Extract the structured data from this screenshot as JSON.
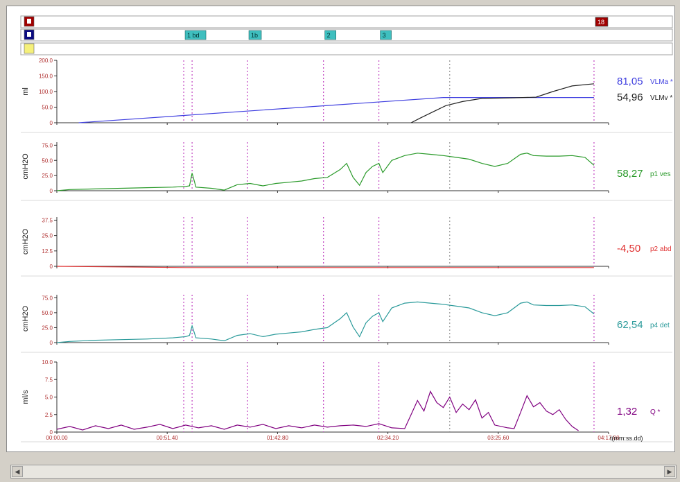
{
  "event_rows": [
    {
      "icon_color": "#a00000",
      "icon_label": "",
      "markers": [
        {
          "label": "18",
          "t": 4.17,
          "color": "#a00000",
          "text_color": "#ffffff"
        }
      ]
    },
    {
      "icon_color": "#0a0a80",
      "icon_label": "",
      "markers": [
        {
          "label": "1 bd",
          "t": 0.985,
          "color": "#3fbfbf",
          "text_color": "#003030"
        },
        {
          "label": "1b",
          "t": 1.48,
          "color": "#3fbfbf",
          "text_color": "#003030"
        },
        {
          "label": "2",
          "t": 2.07,
          "color": "#3fbfbf",
          "text_color": "#003030"
        },
        {
          "label": "3",
          "t": 2.5,
          "color": "#3fbfbf",
          "text_color": "#003030"
        }
      ]
    },
    {
      "icon_color": "#f5f07a",
      "icon_label": "",
      "markers": []
    }
  ],
  "vlines": {
    "magenta": [
      0.985,
      1.05,
      1.48,
      2.07,
      2.5,
      4.17
    ],
    "gray": [
      3.05
    ]
  },
  "chart_data": [
    {
      "type": "line",
      "ylabel": "ml",
      "ylim": [
        0,
        200
      ],
      "yticks": [
        "0",
        "50.0",
        "100.0",
        "150.0",
        "200.0"
      ],
      "ytick_values": [
        0,
        50,
        100,
        150,
        200
      ],
      "series": [
        {
          "name": "VLMa *",
          "color": "#4040e0",
          "readout": "81,05",
          "x": [
            0.17,
            3.0,
            4.17
          ],
          "y": [
            0,
            81,
            81
          ]
        },
        {
          "name": "VLMv *",
          "color": "#202020",
          "readout": "54,96",
          "x": [
            2.75,
            2.82,
            2.92,
            3.02,
            3.15,
            3.3,
            3.55,
            3.72,
            3.85,
            4.0,
            4.17
          ],
          "y": [
            0,
            15,
            35,
            55,
            68,
            78,
            80,
            82,
            100,
            118,
            125
          ]
        }
      ]
    },
    {
      "type": "line",
      "ylabel": "cmH2O",
      "ylim": [
        0,
        80
      ],
      "yticks": [
        "0",
        "25.0",
        "50.0",
        "75.0"
      ],
      "ytick_values": [
        0,
        25,
        50,
        75
      ],
      "series": [
        {
          "name": "p1 ves",
          "color": "#2a9a2a",
          "readout": "58,27",
          "x": [
            0.0,
            0.1,
            0.3,
            0.5,
            0.7,
            0.9,
            1.0,
            1.03,
            1.05,
            1.08,
            1.2,
            1.3,
            1.4,
            1.5,
            1.6,
            1.7,
            1.8,
            1.9,
            2.0,
            2.1,
            2.2,
            2.25,
            2.3,
            2.35,
            2.4,
            2.45,
            2.5,
            2.53,
            2.6,
            2.7,
            2.8,
            2.9,
            3.0,
            3.1,
            3.2,
            3.3,
            3.4,
            3.5,
            3.6,
            3.65,
            3.7,
            3.8,
            3.9,
            4.0,
            4.1,
            4.17
          ],
          "y": [
            0,
            2,
            3,
            4,
            5,
            6,
            7,
            8,
            29,
            6,
            4,
            1,
            10,
            12,
            8,
            12,
            14,
            16,
            20,
            22,
            35,
            45,
            22,
            9,
            30,
            40,
            45,
            30,
            50,
            58,
            62,
            60,
            58,
            55,
            52,
            45,
            40,
            45,
            60,
            62,
            58,
            57,
            57,
            58,
            55,
            42
          ]
        }
      ]
    },
    {
      "type": "line",
      "ylabel": "cmH2O",
      "ylim": [
        0,
        40
      ],
      "yticks": [
        "0",
        "12.5",
        "25.0",
        "37.5"
      ],
      "ytick_values": [
        0,
        12.5,
        25,
        37.5
      ],
      "series": [
        {
          "name": "p2 abd",
          "color": "#e03030",
          "readout": "-4,50",
          "x": [
            0.0,
            1.0,
            2.0,
            3.0,
            3.5,
            4.17
          ],
          "y": [
            0,
            -1,
            -2.2,
            -3.2,
            -4.0,
            -4.5
          ]
        }
      ]
    },
    {
      "type": "line",
      "ylabel": "cmH2O",
      "ylim": [
        0,
        80
      ],
      "yticks": [
        "0",
        "25.0",
        "50.0",
        "75.0"
      ],
      "ytick_values": [
        0,
        25,
        50,
        75
      ],
      "series": [
        {
          "name": "p4 det",
          "color": "#2a9a9a",
          "readout": "62,54",
          "x": [
            0.0,
            0.1,
            0.3,
            0.5,
            0.7,
            0.9,
            1.0,
            1.03,
            1.05,
            1.08,
            1.2,
            1.3,
            1.4,
            1.5,
            1.6,
            1.7,
            1.8,
            1.9,
            2.0,
            2.1,
            2.2,
            2.25,
            2.3,
            2.35,
            2.4,
            2.45,
            2.5,
            2.53,
            2.6,
            2.7,
            2.8,
            2.9,
            3.0,
            3.1,
            3.2,
            3.3,
            3.4,
            3.5,
            3.6,
            3.65,
            3.7,
            3.8,
            3.9,
            4.0,
            4.1,
            4.17
          ],
          "y": [
            0,
            2,
            4,
            5,
            6,
            8,
            10,
            12,
            28,
            8,
            6,
            3,
            12,
            15,
            10,
            14,
            16,
            18,
            22,
            25,
            40,
            50,
            26,
            10,
            33,
            44,
            50,
            35,
            58,
            66,
            68,
            66,
            64,
            61,
            58,
            50,
            45,
            50,
            66,
            68,
            63,
            62,
            62,
            63,
            60,
            48
          ]
        }
      ]
    },
    {
      "type": "line",
      "ylabel": "ml/s",
      "ylim": [
        0,
        10
      ],
      "yticks": [
        "0",
        "2.5",
        "5.0",
        "7.5",
        "10.0"
      ],
      "ytick_values": [
        0,
        2.5,
        5,
        7.5,
        10
      ],
      "xticks": [
        "00:00.00",
        "00:51.40",
        "01:42.80",
        "02:34.20",
        "03:25.60",
        "04:17.00"
      ],
      "xtick_values": [
        0,
        0.8567,
        1.7133,
        2.57,
        3.4267,
        4.2833
      ],
      "xlabel": "t(mm:ss.dd)",
      "series": [
        {
          "name": "Q *",
          "color": "#800080",
          "readout": "1,32",
          "x": [
            0.0,
            0.1,
            0.2,
            0.3,
            0.4,
            0.5,
            0.6,
            0.7,
            0.8,
            0.9,
            1.0,
            1.1,
            1.2,
            1.3,
            1.4,
            1.5,
            1.6,
            1.7,
            1.8,
            1.9,
            2.0,
            2.1,
            2.2,
            2.3,
            2.4,
            2.5,
            2.6,
            2.7,
            2.75,
            2.8,
            2.85,
            2.9,
            2.95,
            3.0,
            3.05,
            3.1,
            3.15,
            3.2,
            3.25,
            3.3,
            3.35,
            3.4,
            3.5,
            3.55,
            3.6,
            3.65,
            3.7,
            3.75,
            3.8,
            3.85,
            3.9,
            3.95,
            4.0,
            4.05
          ],
          "y": [
            0.4,
            0.8,
            0.3,
            0.9,
            0.5,
            1.0,
            0.4,
            0.7,
            1.1,
            0.5,
            1.0,
            0.6,
            0.9,
            0.4,
            1.0,
            0.7,
            1.1,
            0.5,
            0.9,
            0.6,
            1.0,
            0.7,
            0.9,
            1.0,
            0.8,
            1.2,
            0.6,
            0.5,
            2.5,
            4.5,
            3.0,
            5.8,
            4.2,
            3.5,
            5.0,
            2.8,
            4.0,
            3.2,
            4.6,
            2.0,
            2.8,
            1.0,
            0.6,
            0.5,
            2.8,
            5.2,
            3.6,
            4.2,
            3.0,
            2.5,
            3.2,
            1.8,
            0.8,
            0.2
          ]
        }
      ]
    }
  ]
}
